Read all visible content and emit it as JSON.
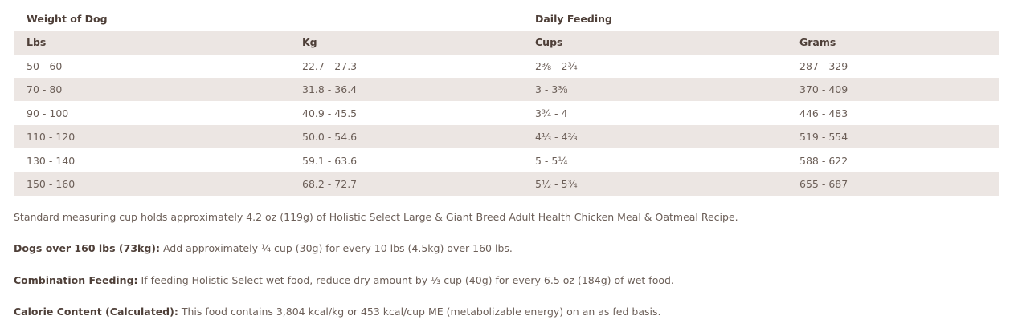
{
  "table": {
    "group_headers": [
      "Weight of Dog",
      "Daily Feeding"
    ],
    "columns": [
      "Lbs",
      "Kg",
      "Cups",
      "Grams"
    ],
    "rows": [
      [
        "50 - 60",
        "22.7 - 27.3",
        "2⅜ - 2¾",
        "287 - 329"
      ],
      [
        "70 - 80",
        "31.8 - 36.4",
        "3 - 3⅜",
        "370 - 409"
      ],
      [
        "90 - 100",
        "40.9 - 45.5",
        "3¾ - 4",
        "446 - 483"
      ],
      [
        "110 - 120",
        "50.0 - 54.6",
        "4⅓ - 4⅔",
        "519 - 554"
      ],
      [
        "130 - 140",
        "59.1 - 63.6",
        "5 - 5¼",
        "588 - 622"
      ],
      [
        "150 - 160",
        "68.2 - 72.7",
        "5½ - 5¾",
        "655 - 687"
      ]
    ]
  },
  "notes": [
    {
      "text": "Standard measuring cup holds approximately 4.2 oz (119g) of Holistic Select Large & Giant Breed Adult Health Chicken Meal & Oatmeal Recipe."
    },
    {
      "label": "Dogs over 160 lbs (73kg):",
      "text": "Add approximately ¼ cup (30g) for every 10 lbs (4.5kg) over 160 lbs."
    },
    {
      "label": "Combination Feeding:",
      "text": "If feeding Holistic Select wet food, reduce dry amount by ⅓ cup (40g) for every 6.5 oz (184g) of wet food."
    },
    {
      "label": "Calorie Content (Calculated):",
      "text": "This food contains 3,804 kcal/kg or 453 kcal/cup ME (metabolizable energy) on an as fed basis."
    }
  ]
}
